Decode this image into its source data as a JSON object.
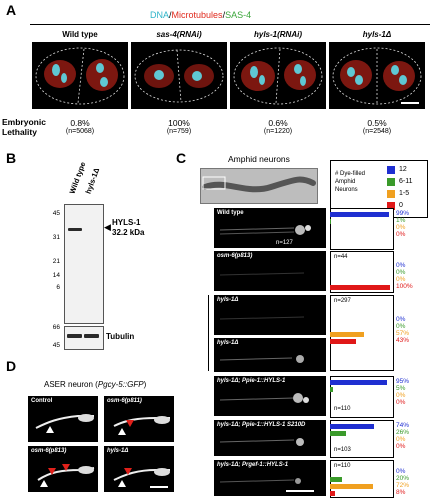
{
  "panel_a": {
    "letter": "A",
    "legend": {
      "dna": "DNA",
      "sep1": "/",
      "microtubules": "Microtubules",
      "sep2": "/",
      "sas4": "SAS-4"
    },
    "legend_colors": {
      "dna": "#2fb5c9",
      "microtubules": "#e02a1d",
      "sas4": "#3aa63a"
    },
    "conditions": [
      {
        "label": "Wild type",
        "pct": "0.8%",
        "n": "(n=5068)"
      },
      {
        "label": "sas-4(RNAi)",
        "pct": "100%",
        "n": "(n=759)"
      },
      {
        "label": "hyls-1(RNAi)",
        "pct": "0.6%",
        "n": "(n=1220)"
      },
      {
        "label": "hyls-1Δ",
        "pct": "0.5%",
        "n": "(n=2548)"
      }
    ],
    "row_label_1": "Embryonic",
    "row_label_2": "Lethality"
  },
  "panel_b": {
    "letter": "B",
    "lanes": [
      "Wild type",
      "hyls-1Δ"
    ],
    "markers_top": [
      "45",
      "31",
      "21",
      "14",
      "6"
    ],
    "markers_bottom": [
      "66",
      "45"
    ],
    "band_label_1": "HYLS-1",
    "band_label_2": "32.2 kDa",
    "loading_label": "Tubulin"
  },
  "panel_c": {
    "letter": "C",
    "title": "Amphid neurons",
    "legend_title": [
      "# Dye-filled",
      "Amphid",
      "Neurons"
    ],
    "legend_items": [
      {
        "label": "12",
        "color": "#1f2fd1"
      },
      {
        "label": "6-11",
        "color": "#3a9a2a"
      },
      {
        "label": "1-5",
        "color": "#f0a020"
      },
      {
        "label": "0",
        "color": "#e01818"
      }
    ],
    "rows": [
      {
        "label": "Wild type",
        "italic": false,
        "n": "n=127",
        "values": [
          99,
          1,
          0,
          0
        ],
        "pct": [
          "99%",
          "1%",
          "0%",
          "0%"
        ]
      },
      {
        "label": "osm-6(p813)",
        "italic": true,
        "n": "n=44",
        "values": [
          0,
          0,
          0,
          100
        ],
        "pct": [
          "0%",
          "0%",
          "0%",
          "100%"
        ]
      },
      {
        "label": "hyls-1Δ",
        "italic": true,
        "n": "n=297",
        "values": [
          0,
          0,
          57,
          43
        ],
        "pct": [
          "0%",
          "0%",
          "57%",
          "43%"
        ]
      },
      {
        "label": "hyls-1Δ",
        "italic": true,
        "n": "",
        "values": null,
        "pct": null
      },
      {
        "label": "hyls-1Δ; Ppie-1::HYLS-1",
        "italic": true,
        "n": "n=110",
        "values": [
          95,
          5,
          0,
          0
        ],
        "pct": [
          "95%",
          "5%",
          "0%",
          "0%"
        ]
      },
      {
        "label": "hyls-1Δ; Ppie-1::HYLS-1 S210D",
        "italic": true,
        "n": "n=103",
        "values": [
          74,
          26,
          0,
          0
        ],
        "pct": [
          "74%",
          "26%",
          "0%",
          "0%"
        ]
      },
      {
        "label": "hyls-1Δ; Prgef-1::HYLS-1",
        "italic": true,
        "n": "n=110",
        "values": [
          0,
          20,
          72,
          8
        ],
        "pct": [
          "0%",
          "20%",
          "72%",
          "8%"
        ]
      }
    ]
  },
  "panel_d": {
    "letter": "D",
    "title_plain": "ASER neuron (",
    "title_italic": "Pgcy-5::GFP",
    "title_end": ")",
    "images": [
      {
        "label": "Control",
        "italic": false
      },
      {
        "label": "osm-6(p811)",
        "italic": true
      },
      {
        "label": "osm-6(p813)",
        "italic": true
      },
      {
        "label": "hyls-1Δ",
        "italic": true
      }
    ]
  }
}
